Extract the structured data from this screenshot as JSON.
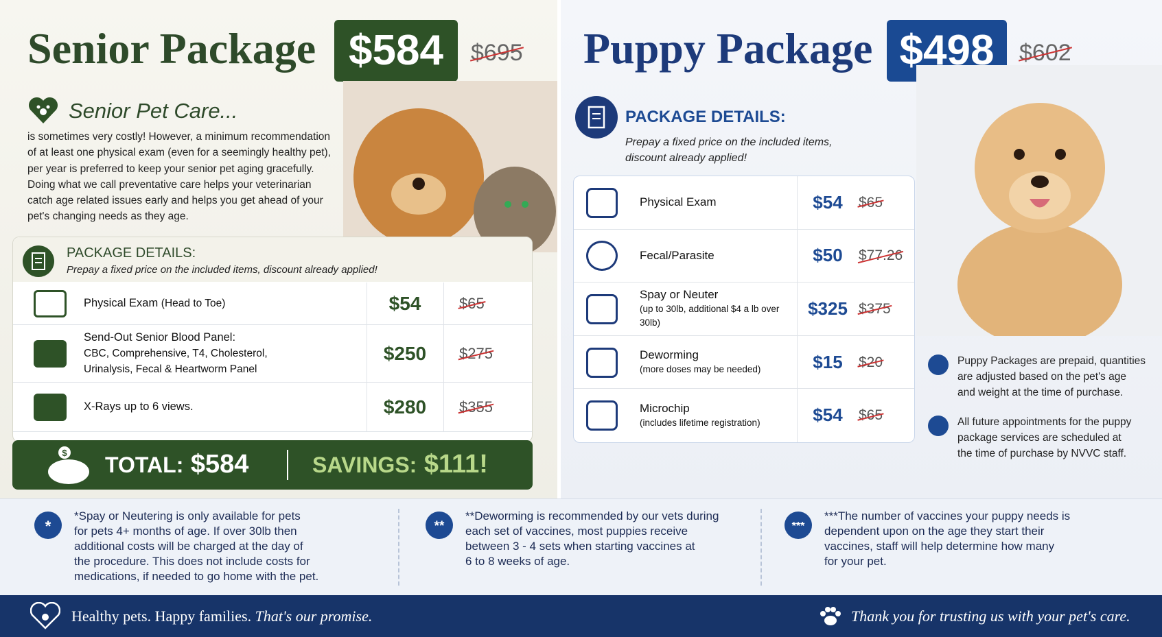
{
  "senior": {
    "title": "Senior Package",
    "price": "$584",
    "old_price": "$695",
    "care_heading": "Senior Pet Care...",
    "care_text": "is sometimes very costly! However, a minimum recommendation\nof at least one physical exam (even for a seemingly healthy pet),\nper year is preferred to keep your senior pet aging gracefully.\nDoing what we call preventative care helps your veterinarian\ncatch age related issues early and helps you get ahead of your\npet's changing needs as they age.",
    "details": {
      "heading": "PACKAGE DETAILS:",
      "subtitle": "Prepay a fixed price on the included items, discount already applied!",
      "rows": [
        {
          "name": "Physical Exam",
          "note": "(Head to Toe)",
          "price": "$54",
          "old_price": "$65"
        },
        {
          "name": "Send-Out Senior Blood Panel:",
          "note": "CBC, Comprehensive, T4, Cholesterol,\nUrinalysis, Fecal & Heartworm Panel",
          "price": "$250",
          "old_price": "$275"
        },
        {
          "name": "X-Rays up to 6 views.",
          "note": "",
          "price": "$280",
          "old_price": "$355"
        }
      ]
    },
    "total": {
      "label": "TOTAL:",
      "value": "$584"
    },
    "savings": {
      "label": "SAVINGS:",
      "value": "$111!"
    }
  },
  "puppy": {
    "title": "Puppy Package",
    "price": "$498",
    "old_price": "$602",
    "details": {
      "heading": "PACKAGE DETAILS:",
      "subtitle": "Prepay a fixed price on the included items,\ndiscount already applied!",
      "rows": [
        {
          "name": "Physical Exam",
          "note": "",
          "price": "$54",
          "old_price": "$65"
        },
        {
          "name": "Fecal/Parasite",
          "note": "",
          "price": "$50",
          "old_price": "$77.26"
        },
        {
          "name": "Spay or Neuter",
          "note": "(up to 30lb, additional $4 a lb over 30lb)",
          "price": "$325",
          "old_price": "$375"
        },
        {
          "name": "Deworming",
          "note": "(more doses may be needed)",
          "price": "$15",
          "old_price": "$20"
        },
        {
          "name": "Microchip",
          "note": "(includes lifetime registration)",
          "price": "$54",
          "old_price": "$65"
        }
      ]
    },
    "notes": [
      "Puppy Packages are prepaid, quantities\nare adjusted based on the pet's age\nand weight at the time of purchase.",
      "All future appointments for the puppy\npackage services are scheduled at\nthe time of purchase by NVVC staff."
    ]
  },
  "footnotes": [
    {
      "icon": "*",
      "text": "*Spay or Neutering is only available for pets\n   for pets 4+ months of age. If over 30lb then\n   additional costs will be charged at the day of\n   the procedure. This does not include costs for\n   medications, if needed to go home with the pet."
    },
    {
      "icon": "**",
      "text": "**Deworming is recommended by our vets during\n    each set of vaccines, most puppies receive\n    between 3 - 4 sets when starting vaccines at\n    6 to 8 weeks of age."
    },
    {
      "icon": "***",
      "text": "***The number of vaccines your puppy needs is\n     dependent upon on the age they start their\n     vaccines, staff will help determine how many\n     for your pet."
    }
  ],
  "footer": {
    "left": "Healthy pets. Happy families.",
    "left_em": "That's our promise.",
    "right": "Thank you for trusting us with your pet's care."
  }
}
